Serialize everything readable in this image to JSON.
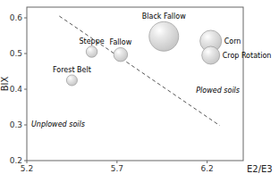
{
  "chart_data": {
    "type": "bubble",
    "xlabel": "E2/E3",
    "ylabel": "BIX",
    "xlim": [
      5.2,
      6.4
    ],
    "ylim": [
      0.2,
      0.63
    ],
    "xticks": [
      5.2,
      5.7,
      6.2
    ],
    "yticks": [
      0.2,
      0.3,
      0.4,
      0.5,
      0.6
    ],
    "grid": false,
    "series": [
      {
        "type": "bubble",
        "color": "#c8c8c8",
        "labels": [
          "Forest Belt",
          "Steppe",
          "Fallow",
          "Black Fallow",
          "Corn",
          "Crop Rotation"
        ],
        "x": [
          5.45,
          5.56,
          5.72,
          5.96,
          6.22,
          6.22
        ],
        "values": [
          0.425,
          0.505,
          0.497,
          0.548,
          0.535,
          0.495
        ],
        "sizes": [
          120,
          130,
          200,
          900,
          480,
          330
        ]
      },
      {
        "type": "line",
        "color": "#555555",
        "line_style": "dashed",
        "x": [
          5.38,
          6.27
        ],
        "values": [
          0.605,
          0.298
        ]
      }
    ],
    "annotations": [
      "Unplowed soils",
      "Plowed soils"
    ]
  }
}
